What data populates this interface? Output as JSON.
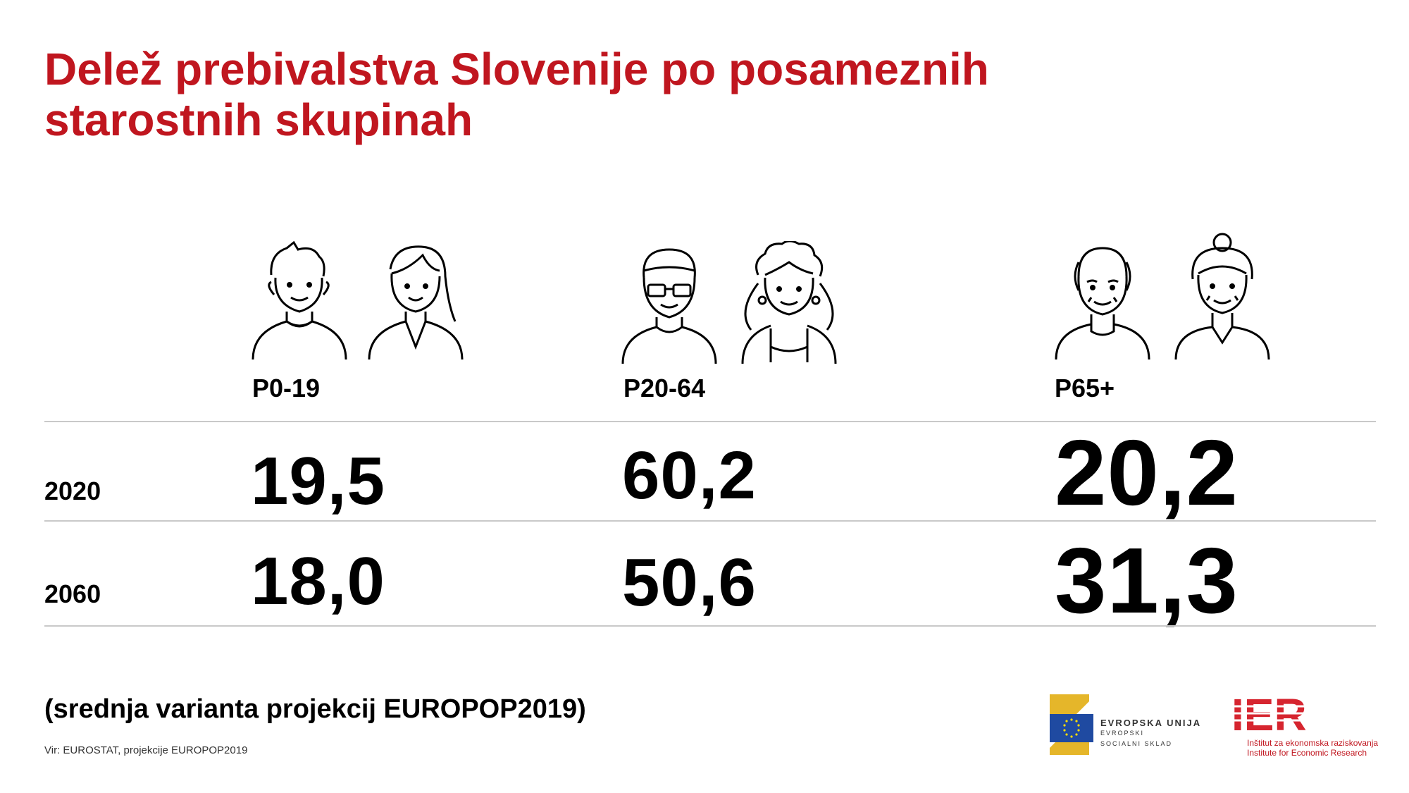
{
  "title": {
    "line1": "Delež prebivalstva Slovenije po posameznih",
    "line2": "starostnih skupinah"
  },
  "chart_data": {
    "type": "table",
    "columns": [
      "P0-19",
      "P20-64",
      "P65+"
    ],
    "rows": [
      {
        "year": "2020",
        "values": [
          "19,5",
          "60,2",
          "20,2"
        ]
      },
      {
        "year": "2060",
        "values": [
          "18,0",
          "50,6",
          "31,3"
        ]
      }
    ]
  },
  "note": "(srednja varianta projekcij EUROPOP2019)",
  "source": "Vir: EUROSTAT, projekcije EUROPOP2019",
  "logos": {
    "esf_line1": "EVROPSKA UNIJA",
    "esf_line2": "EVROPSKI",
    "esf_line3": "SOCIALNI SKLAD",
    "ier_mark": "IER",
    "ier_line1": "Inštitut za ekonomska raziskovanja",
    "ier_line2": "Institute for Economic Research"
  },
  "icons": [
    "young-man-icon",
    "young-woman-icon",
    "man-with-glasses-icon",
    "curly-woman-icon",
    "old-man-icon",
    "old-woman-icon"
  ],
  "colors": {
    "accent": "#c0161f",
    "text": "#000000",
    "rule": "#c9c9c9"
  }
}
